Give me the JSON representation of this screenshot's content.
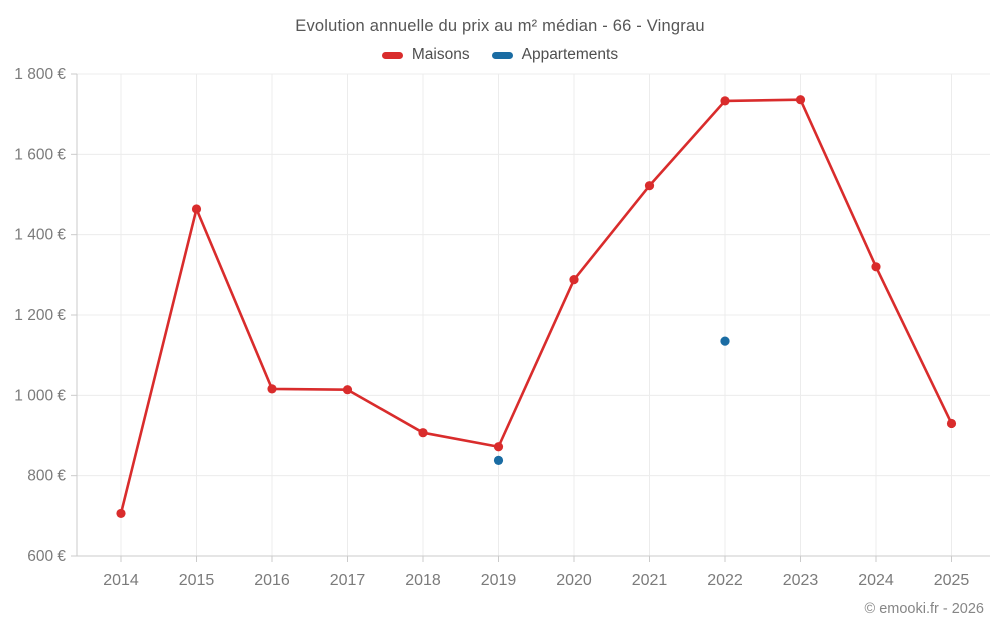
{
  "chart": {
    "title": "Evolution annuelle du prix au m² médian - 66 - Vingrau",
    "attribution": "© emooki.fr - 2026"
  },
  "chart_data": {
    "type": "line",
    "categories": [
      "2014",
      "2015",
      "2016",
      "2017",
      "2018",
      "2019",
      "2020",
      "2021",
      "2022",
      "2023",
      "2024",
      "2025"
    ],
    "series": [
      {
        "name": "Maisons",
        "color": "#d92c2c",
        "show_line": true,
        "values": [
          706,
          1464,
          1016,
          1014,
          907,
          872,
          1288,
          1522,
          1733,
          1736,
          1320,
          930
        ]
      },
      {
        "name": "Appartements",
        "color": "#1a6ca3",
        "show_line": false,
        "values": [
          null,
          null,
          null,
          null,
          null,
          838,
          null,
          null,
          1135,
          null,
          null,
          null
        ]
      }
    ],
    "title": "Evolution annuelle du prix au m² médian - 66 - Vingrau",
    "xlabel": "",
    "ylabel": "",
    "ylim": [
      600,
      1800
    ],
    "yticks": {
      "values": [
        600,
        800,
        1000,
        1200,
        1400,
        1600,
        1800
      ],
      "labels": [
        "600 €",
        "800 €",
        "1 000 €",
        "1 200 €",
        "1 400 €",
        "1 600 €",
        "1 800 €"
      ]
    },
    "grid": true,
    "legend_position": "top"
  }
}
